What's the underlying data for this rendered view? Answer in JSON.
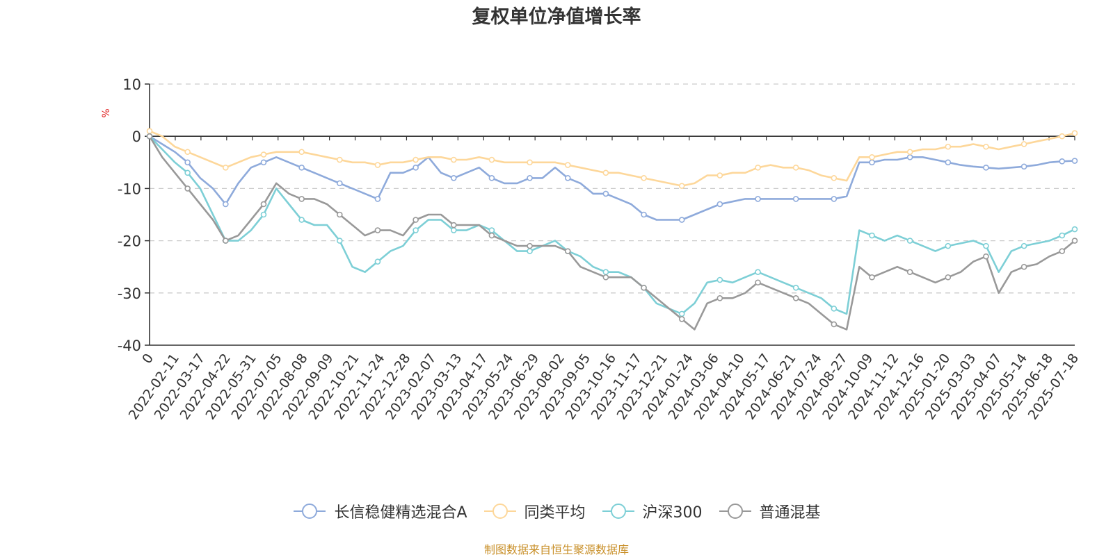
{
  "chart_data": {
    "type": "line",
    "title": "复权单位净值增长率",
    "ylabel": "%",
    "ylim": [
      -40,
      10
    ],
    "yticks": [
      10,
      0,
      -10,
      -20,
      -30,
      -40
    ],
    "grid": true,
    "legend_position": "bottom-center",
    "x_tick_labels": [
      "0",
      "2022-02-11",
      "2022-03-17",
      "2022-04-22",
      "2022-05-31",
      "2022-07-05",
      "2022-08-08",
      "2022-09-09",
      "2022-10-21",
      "2022-11-24",
      "2022-12-28",
      "2023-02-07",
      "2023-03-13",
      "2023-04-17",
      "2023-05-24",
      "2023-06-29",
      "2023-08-02",
      "2023-09-05",
      "2023-10-16",
      "2023-11-17",
      "2023-12-21",
      "2024-01-24",
      "2024-03-06",
      "2024-04-10",
      "2024-05-17",
      "2024-06-21",
      "2024-07-24",
      "2024-08-27",
      "2024-10-09",
      "2024-11-12",
      "2024-12-16",
      "2025-01-20",
      "2025-03-03",
      "2025-04-07",
      "2025-05-14",
      "2025-06-18",
      "2025-07-18"
    ],
    "x": [
      "0",
      "2022-01-20",
      "2022-02-11",
      "2022-03-01",
      "2022-03-17",
      "2022-04-01",
      "2022-04-22",
      "2022-05-10",
      "2022-05-31",
      "2022-06-15",
      "2022-07-05",
      "2022-07-20",
      "2022-08-08",
      "2022-08-24",
      "2022-09-09",
      "2022-09-30",
      "2022-10-21",
      "2022-11-08",
      "2022-11-24",
      "2022-12-09",
      "2022-12-28",
      "2023-01-16",
      "2023-02-07",
      "2023-02-22",
      "2023-03-13",
      "2023-03-28",
      "2023-04-17",
      "2023-05-05",
      "2023-05-24",
      "2023-06-09",
      "2023-06-29",
      "2023-07-17",
      "2023-08-02",
      "2023-08-18",
      "2023-09-05",
      "2023-09-22",
      "2023-10-16",
      "2023-10-31",
      "2023-11-17",
      "2023-12-05",
      "2023-12-21",
      "2024-01-08",
      "2024-01-24",
      "2024-02-05",
      "2024-03-06",
      "2024-03-21",
      "2024-04-10",
      "2024-04-26",
      "2024-05-17",
      "2024-06-04",
      "2024-06-21",
      "2024-07-08",
      "2024-07-24",
      "2024-08-09",
      "2024-08-27",
      "2024-09-20",
      "2024-10-09",
      "2024-10-25",
      "2024-11-12",
      "2024-11-28",
      "2024-12-16",
      "2025-01-03",
      "2025-01-20",
      "2025-02-12",
      "2025-03-03",
      "2025-03-19",
      "2025-04-07",
      "2025-04-24",
      "2025-05-14",
      "2025-06-03",
      "2025-06-18",
      "2025-07-03",
      "2025-07-18",
      "2025-07-31"
    ],
    "series": [
      {
        "name": "长信稳健精选混合A",
        "color": "#8eaadb",
        "values": [
          0,
          -1.5,
          -3,
          -5,
          -8,
          -10,
          -13,
          -9,
          -6,
          -5,
          -4,
          -5,
          -6,
          -7,
          -8,
          -9,
          -10,
          -11,
          -12,
          -7,
          -7,
          -6,
          -4,
          -7,
          -8,
          -7,
          -6,
          -8,
          -9,
          -9,
          -8,
          -8,
          -6,
          -8,
          -9,
          -11,
          -11,
          -12,
          -13,
          -15,
          -16,
          -16,
          -16,
          -15,
          -14,
          -13,
          -12.5,
          -12,
          -12,
          -12,
          -12,
          -12,
          -12,
          -12,
          -12,
          -11.5,
          -5,
          -5,
          -4.5,
          -4.5,
          -4,
          -4,
          -4.5,
          -5,
          -5.5,
          -5.8,
          -6,
          -6.2,
          -6,
          -5.8,
          -5.5,
          -5,
          -4.8,
          -4.7
        ]
      },
      {
        "name": "同类平均",
        "color": "#fdd79a",
        "values": [
          1,
          0,
          -2,
          -3,
          -4,
          -5,
          -6,
          -5,
          -4,
          -3.5,
          -3,
          -3,
          -3,
          -3.5,
          -4,
          -4.5,
          -5,
          -5,
          -5.5,
          -5,
          -5,
          -4.5,
          -4,
          -4,
          -4.5,
          -4.5,
          -4,
          -4.5,
          -5,
          -5,
          -5,
          -5,
          -5,
          -5.5,
          -6,
          -6.5,
          -7,
          -7,
          -7.5,
          -8,
          -8.5,
          -9,
          -9.5,
          -9,
          -7.5,
          -7.5,
          -7,
          -7,
          -6,
          -5.5,
          -6,
          -6,
          -6.5,
          -7.5,
          -8,
          -8.5,
          -4,
          -4,
          -3.5,
          -3,
          -3,
          -2.5,
          -2.5,
          -2,
          -2,
          -1.5,
          -2,
          -2.5,
          -2,
          -1.5,
          -1,
          -0.5,
          0,
          0.6
        ]
      },
      {
        "name": "沪深300",
        "color": "#7dcfd6",
        "values": [
          0,
          -2.5,
          -5,
          -7,
          -10,
          -15,
          -20,
          -20,
          -18,
          -15,
          -10,
          -13,
          -16,
          -17,
          -17,
          -20,
          -25,
          -26,
          -24,
          -22,
          -21,
          -18,
          -16,
          -16,
          -18,
          -18,
          -17,
          -18,
          -20,
          -22,
          -22,
          -21,
          -20,
          -22,
          -23,
          -25,
          -26,
          -26,
          -27,
          -29,
          -32,
          -33,
          -34,
          -32,
          -28,
          -27.5,
          -28,
          -27,
          -26,
          -27,
          -28,
          -29,
          -30,
          -31,
          -33,
          -34,
          -18,
          -19,
          -20,
          -19,
          -20,
          -21,
          -22,
          -21,
          -20.5,
          -20,
          -21,
          -26,
          -22,
          -21,
          -20.5,
          -20,
          -19,
          -17.8
        ]
      },
      {
        "name": "普通混基",
        "color": "#999999",
        "values": [
          0,
          -4,
          -7,
          -10,
          -13,
          -16,
          -20,
          -19,
          -16,
          -13,
          -9,
          -11,
          -12,
          -12,
          -13,
          -15,
          -17,
          -19,
          -18,
          -18,
          -19,
          -16,
          -15,
          -15,
          -17,
          -17,
          -17,
          -19,
          -20,
          -21,
          -21,
          -21,
          -21,
          -22,
          -25,
          -26,
          -27,
          -27,
          -27,
          -29,
          -31,
          -33,
          -35,
          -37,
          -32,
          -31,
          -31,
          -30,
          -28,
          -29,
          -30,
          -31,
          -32,
          -34,
          -36,
          -37,
          -25,
          -27,
          -26,
          -25,
          -26,
          -27,
          -28,
          -27,
          -26,
          -24,
          -23,
          -30,
          -26,
          -25,
          -24.5,
          -23,
          -22,
          -20
        ]
      }
    ]
  },
  "source_note": "制图数据来自恒生聚源数据库"
}
